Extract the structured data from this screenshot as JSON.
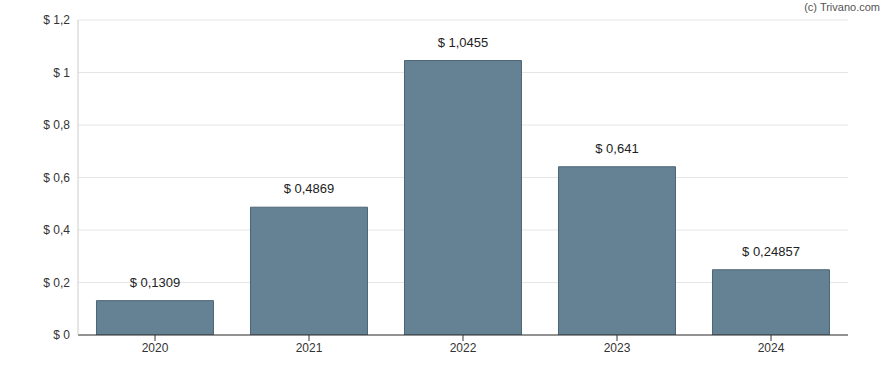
{
  "chart_data": {
    "type": "bar",
    "source": "(c) Trivano.com",
    "categories": [
      "2020",
      "2021",
      "2022",
      "2023",
      "2024"
    ],
    "values": [
      0.1309,
      0.4869,
      1.0455,
      0.641,
      0.24857
    ],
    "value_labels": [
      "$ 0,1309",
      "$ 0,4869",
      "$ 1,0455",
      "$ 0,641",
      "$ 0,24857"
    ],
    "color": "#658294",
    "ylim": [
      0,
      1.2
    ],
    "yticks": [
      {
        "value": 0,
        "label": "$ 0"
      },
      {
        "value": 0.2,
        "label": "$ 0,2"
      },
      {
        "value": 0.4,
        "label": "$ 0,4"
      },
      {
        "value": 0.6,
        "label": "$ 0,6"
      },
      {
        "value": 0.8,
        "label": "$ 0,8"
      },
      {
        "value": 1,
        "label": "$ 1"
      },
      {
        "value": 1.2,
        "label": "$ 1,2"
      }
    ],
    "grid": true,
    "data_labels": true
  }
}
